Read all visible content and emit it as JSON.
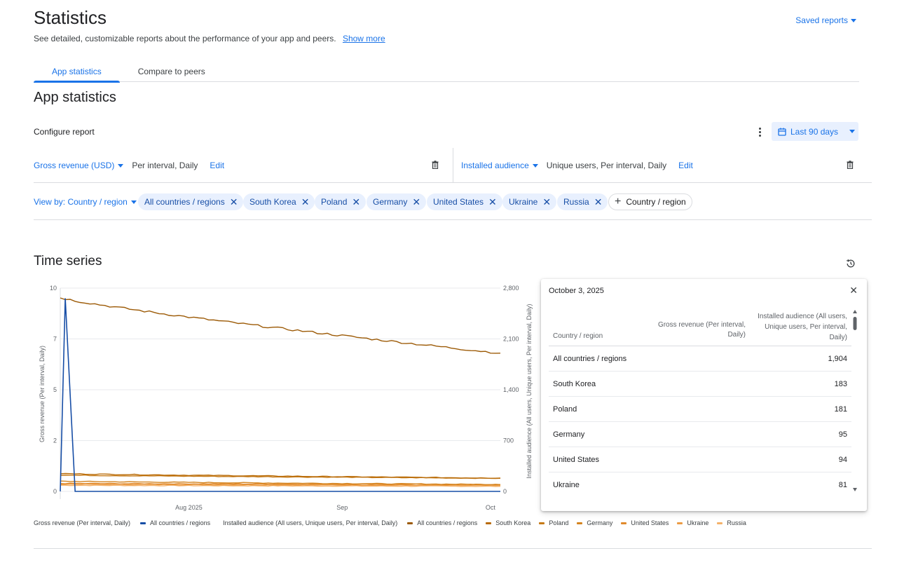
{
  "header": {
    "title": "Statistics",
    "subtitle": "See detailed, customizable reports about the performance of your app and peers.",
    "show_more": "Show more",
    "saved_reports": "Saved reports"
  },
  "tabs": [
    {
      "label": "App statistics",
      "active": true
    },
    {
      "label": "Compare to peers",
      "active": false
    }
  ],
  "section_title": "App statistics",
  "configure_label": "Configure report",
  "date_range": "Last 90 days",
  "metric_left": {
    "name": "Gross revenue (USD)",
    "desc": "Per interval, Daily",
    "edit": "Edit"
  },
  "metric_right": {
    "name": "Installed audience",
    "desc": "Unique users, Per interval, Daily",
    "edit": "Edit"
  },
  "view_by": "View by: Country / region",
  "chips": [
    "All countries / regions",
    "South Korea",
    "Poland",
    "Germany",
    "United States",
    "Ukraine",
    "Russia"
  ],
  "add_chip": "Country / region",
  "time_series_title": "Time series",
  "tooltip": {
    "date": "October 3, 2025",
    "col1": "Country / region",
    "col2": "Gross revenue (Per interval, Daily)",
    "col3": "Installed audience (All users, Unique users, Per interval, Daily)",
    "rows": [
      {
        "country": "All countries / regions",
        "value": "1,904"
      },
      {
        "country": "South Korea",
        "value": "183"
      },
      {
        "country": "Poland",
        "value": "181"
      },
      {
        "country": "Germany",
        "value": "95"
      },
      {
        "country": "United States",
        "value": "94"
      },
      {
        "country": "Ukraine",
        "value": "81"
      }
    ]
  },
  "legend": {
    "left_group": "Gross revenue (Per interval, Daily)",
    "left_items": [
      {
        "name": "All countries / regions",
        "color": "#174ea6"
      }
    ],
    "right_group": "Installed audience (All users, Unique users, Per interval, Daily)",
    "right_items": [
      {
        "name": "All countries / regions",
        "color": "#9c5a06"
      },
      {
        "name": "South Korea",
        "color": "#b86b08"
      },
      {
        "name": "Poland",
        "color": "#c67a17"
      },
      {
        "name": "Germany",
        "color": "#d4841f"
      },
      {
        "name": "United States",
        "color": "#e08a2c"
      },
      {
        "name": "Ukraine",
        "color": "#ec9c45"
      },
      {
        "name": "Russia",
        "color": "#f4b26a"
      }
    ]
  },
  "chart_data": {
    "type": "line",
    "xlabel_ticks": [
      "Aug 2025",
      "Sep",
      "Oct"
    ],
    "ylabel_left": "Gross revenue (Per interval, Daily)",
    "ylabel_right": "Installed audience (All users, Unique users, Per interval, Daily)",
    "yticks_left": [
      "0",
      "2",
      "5",
      "7",
      "10"
    ],
    "yticks_right": [
      "0",
      "700",
      "1,400",
      "2,100",
      "2,800"
    ],
    "ylim_left": [
      0,
      10
    ],
    "ylim_right": [
      0,
      2800
    ],
    "x_start": "2025-07-06",
    "x_end": "2025-10-03",
    "grid": true,
    "revenue_series": {
      "name": "All countries / regions",
      "color": "#174ea6",
      "points": [
        {
          "date": "2025-07-06",
          "value": 0
        },
        {
          "date": "2025-07-07",
          "value": 9.5
        },
        {
          "date": "2025-07-09",
          "value": 0
        },
        {
          "date": "2025-10-03",
          "value": 0
        }
      ]
    },
    "audience_series": [
      {
        "name": "All countries / regions",
        "color": "#9c5a06",
        "start": 2670,
        "end": 1904
      },
      {
        "name": "South Korea",
        "color": "#b86b08",
        "start": 245,
        "end": 183
      },
      {
        "name": "Poland",
        "color": "#c67a17",
        "start": 225,
        "end": 181
      },
      {
        "name": "Germany",
        "color": "#d4841f",
        "start": 140,
        "end": 95
      },
      {
        "name": "United States",
        "color": "#e08a2c",
        "start": 110,
        "end": 94
      },
      {
        "name": "Ukraine",
        "color": "#ec9c45",
        "start": 100,
        "end": 81
      },
      {
        "name": "Russia",
        "color": "#f4b26a",
        "start": 85,
        "end": 70
      }
    ]
  }
}
